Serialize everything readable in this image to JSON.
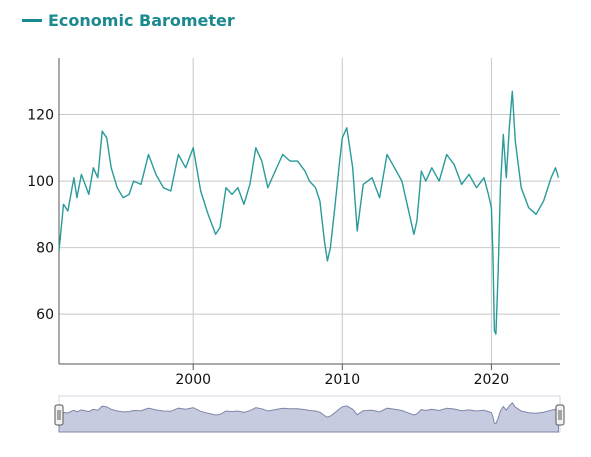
{
  "legend": {
    "label": "Economic Barometer",
    "color": "#1a8a8f"
  },
  "colors": {
    "line": "#2a9a9a",
    "grid": "#c8c8c8",
    "axis": "#555555",
    "navigator_fill": "#c7cbe0",
    "navigator_line": "#7f86a8"
  },
  "chart_data": {
    "type": "line",
    "title": "",
    "xlabel": "",
    "ylabel": "",
    "series": [
      {
        "name": "Economic Barometer",
        "x": [
          1991.0,
          1991.3,
          1991.6,
          1992.0,
          1992.2,
          1992.5,
          1993.0,
          1993.3,
          1993.6,
          1993.9,
          1994.2,
          1994.5,
          1994.9,
          1995.3,
          1995.7,
          1996.0,
          1996.5,
          1997.0,
          1997.5,
          1998.0,
          1998.5,
          1999.0,
          1999.5,
          2000.0,
          2000.5,
          2001.0,
          2001.5,
          2001.8,
          2002.2,
          2002.6,
          2003.0,
          2003.4,
          2003.8,
          2004.2,
          2004.6,
          2005.0,
          2005.5,
          2006.0,
          2006.5,
          2007.0,
          2007.5,
          2007.8,
          2008.2,
          2008.5,
          2008.8,
          2009.0,
          2009.2,
          2009.5,
          2009.8,
          2010.0,
          2010.3,
          2010.7,
          2011.0,
          2011.4,
          2011.7,
          2012.0,
          2012.5,
          2013.0,
          2013.5,
          2014.0,
          2014.5,
          2014.8,
          2015.0,
          2015.3,
          2015.6,
          2016.0,
          2016.5,
          2017.0,
          2017.5,
          2018.0,
          2018.5,
          2019.0,
          2019.5,
          2019.8,
          2020.0,
          2020.1,
          2020.2,
          2020.3,
          2020.45,
          2020.6,
          2020.8,
          2021.0,
          2021.2,
          2021.4,
          2021.6,
          2022.0,
          2022.5,
          2023.0,
          2023.5,
          2024.0,
          2024.3,
          2024.5
        ],
        "y": [
          79,
          93,
          91,
          101,
          95,
          102,
          96,
          104,
          101,
          115,
          113,
          104,
          98,
          95,
          96,
          100,
          99,
          108,
          102,
          98,
          97,
          108,
          104,
          110,
          97,
          90,
          84,
          86,
          98,
          96,
          98,
          93,
          99,
          110,
          106,
          98,
          103,
          108,
          106,
          106,
          103,
          100,
          98,
          94,
          82,
          76,
          80,
          92,
          105,
          113,
          116,
          104,
          85,
          99,
          100,
          101,
          95,
          108,
          104,
          100,
          90,
          84,
          88,
          103,
          100,
          104,
          100,
          108,
          105,
          99,
          102,
          98,
          101,
          96,
          92,
          78,
          55,
          54,
          72,
          98,
          114,
          101,
          116,
          127,
          112,
          98,
          92,
          90,
          94,
          101,
          104,
          101
        ]
      }
    ],
    "xlim": [
      1991.0,
      2024.6
    ],
    "ylim": [
      45,
      137
    ],
    "xticks": [
      2000,
      2010,
      2020
    ],
    "yticks": [
      60,
      80,
      100,
      120
    ],
    "grid": true,
    "legend_position": "top-left",
    "navigator": true
  }
}
